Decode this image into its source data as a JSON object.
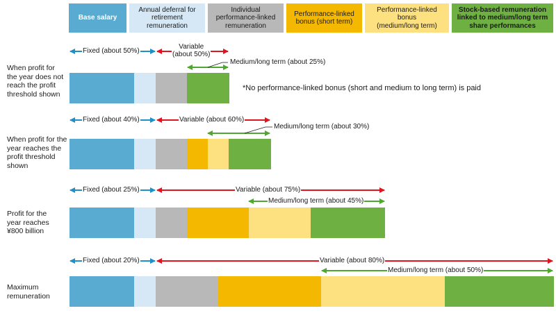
{
  "legend": {
    "base": "Base salary",
    "annual": "Annual deferral for\nretirement\nremuneration",
    "indiv": "Individual\nperformance-linked\nremuneration",
    "short": "Performance-linked\nbonus (short term)",
    "medium": "Performance-linked\nbonus\n(medium/long term)",
    "stock": "Stock-based remuneration\nlinked to medium/long term\nshare performances"
  },
  "colors": {
    "base": "#5aabd1",
    "annual": "#d6e8f6",
    "indiv": "#b8b8b8",
    "short": "#f5b800",
    "medium": "#fde07f",
    "stock": "#6fb043",
    "arrow_fixed": "#1f8fc8",
    "arrow_variable": "#e0141e",
    "arrow_medium": "#4ea72e"
  },
  "rows": [
    {
      "label": "When profit for\nthe year does not\nreach the profit\nthreshold shown",
      "fixed": "Fixed (about 50%)",
      "variable": "Variable\n(about 50%)",
      "medium": "Medium/long term (about 25%)",
      "note": "*No performance-linked bonus (short and medium to long term) is paid"
    },
    {
      "label": "When profit for the\nyear reaches the\nprofit threshold\nshown",
      "fixed": "Fixed (about 40%)",
      "variable": "Variable (about 60%)",
      "medium": "Medium/long term (about 30%)"
    },
    {
      "label": "Profit for the\nyear reaches\n¥800 billion",
      "fixed": "Fixed (about 25%)",
      "variable": "Variable (about 75%)",
      "medium": "Medium/long term (about 45%)"
    },
    {
      "label": "Maximum\nremuneration",
      "fixed": "Fixed (about 20%)",
      "variable": "Variable (about 80%)",
      "medium": "Medium/long term (about 50%)"
    }
  ]
}
